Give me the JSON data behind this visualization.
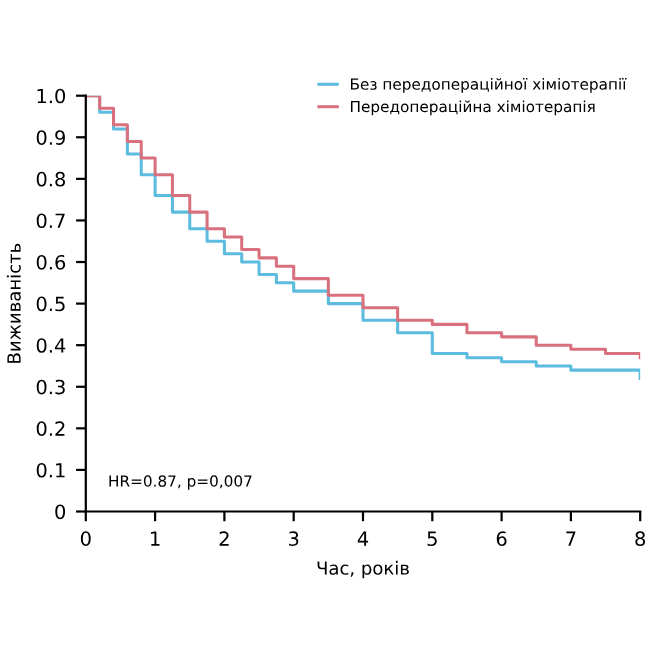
{
  "chart_data": {
    "type": "step",
    "xlabel": "Час, років",
    "ylabel": "Виживаність",
    "xlim": [
      0,
      8
    ],
    "ylim": [
      0,
      1.0
    ],
    "xticks": [
      0,
      1,
      2,
      3,
      4,
      5,
      6,
      7,
      8
    ],
    "yticks": [
      0,
      {
        "value": 0.1,
        "label": "0.1"
      },
      {
        "value": 0.2,
        "label": "0.2"
      },
      {
        "value": 0.3,
        "label": "0.3"
      },
      {
        "value": 0.4,
        "label": "0.4"
      },
      {
        "value": 0.5,
        "label": "0.5"
      },
      {
        "value": 0.6,
        "label": "0.6"
      },
      {
        "value": 0.7,
        "label": "0.7"
      },
      {
        "value": 0.8,
        "label": "0.8"
      },
      {
        "value": 0.9,
        "label": "0.9"
      },
      {
        "value": 1.0,
        "label": "1.0"
      }
    ],
    "grid": false,
    "legend": "top right",
    "line_style": "solid",
    "marker": "none",
    "annotations": [
      "HR=0.87, p=0,007"
    ],
    "series": [
      {
        "name": "Без передопераційної хіміотерапії",
        "color": "#5bbcdf",
        "x": [
          0,
          0.2,
          0.4,
          0.6,
          0.8,
          1,
          1.25,
          1.5,
          1.75,
          2,
          2.25,
          2.5,
          2.75,
          3,
          3.5,
          4,
          4.5,
          5,
          5.5,
          6,
          6.5,
          7,
          7.5,
          8
        ],
        "values": [
          1.0,
          0.96,
          0.92,
          0.86,
          0.81,
          0.76,
          0.72,
          0.68,
          0.65,
          0.62,
          0.6,
          0.57,
          0.55,
          0.53,
          0.5,
          0.46,
          0.43,
          0.38,
          0.37,
          0.36,
          0.35,
          0.34,
          0.34,
          0.32
        ]
      },
      {
        "name": "Передопераційна хіміотерапія",
        "color": "#d9707d",
        "x": [
          0,
          0.2,
          0.4,
          0.6,
          0.8,
          1,
          1.25,
          1.5,
          1.75,
          2,
          2.25,
          2.5,
          2.75,
          3,
          3.5,
          4,
          4.5,
          5,
          5.5,
          6,
          6.5,
          7,
          7.5,
          8
        ],
        "values": [
          1.0,
          0.97,
          0.93,
          0.89,
          0.85,
          0.81,
          0.76,
          0.72,
          0.68,
          0.66,
          0.63,
          0.61,
          0.59,
          0.56,
          0.52,
          0.49,
          0.46,
          0.45,
          0.43,
          0.42,
          0.4,
          0.39,
          0.38,
          0.37
        ]
      }
    ]
  }
}
